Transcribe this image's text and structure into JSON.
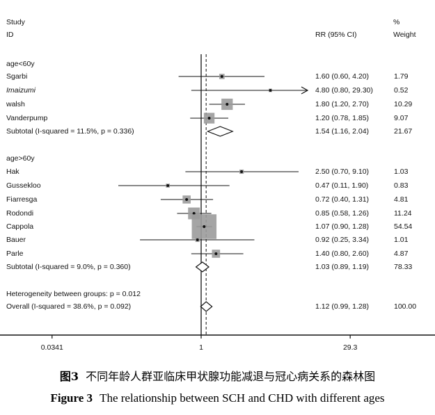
{
  "header": {
    "study_line1": "Study",
    "study_line2": "ID",
    "rr_label": "RR (95% CI)",
    "pct_label": "%",
    "weight_label": "Weight"
  },
  "chart_data": {
    "type": "forest",
    "x_scale": "log",
    "xlim": [
      0.0341,
      29.3
    ],
    "x_ticks": [
      "0.0341",
      "1",
      "29.3"
    ],
    "reference_line": 1,
    "overall_line": 1.12,
    "groups": [
      {
        "label": "age<60y",
        "studies": [
          {
            "name": "Sgarbi",
            "rr": 1.6,
            "lo": 0.6,
            "hi": 4.2,
            "ci_text": "1.60 (0.60, 4.20)",
            "weight": "1.79",
            "italic": false,
            "arrow": false
          },
          {
            "name": "Imaizumi",
            "rr": 4.8,
            "lo": 0.8,
            "hi": 29.3,
            "ci_text": "4.80 (0.80, 29.30)",
            "weight": "0.52",
            "italic": true,
            "arrow": true
          },
          {
            "name": "walsh",
            "rr": 1.8,
            "lo": 1.2,
            "hi": 2.7,
            "ci_text": "1.80 (1.20, 2.70)",
            "weight": "10.29",
            "italic": false,
            "arrow": false
          },
          {
            "name": "Vanderpump",
            "rr": 1.2,
            "lo": 0.78,
            "hi": 1.85,
            "ci_text": "1.20 (0.78, 1.85)",
            "weight": "9.07",
            "italic": false,
            "arrow": false
          }
        ],
        "subtotal": {
          "label": "Subtotal  (I-squared = 11.5%, p = 0.336)",
          "rr": 1.54,
          "lo": 1.16,
          "hi": 2.04,
          "ci_text": "1.54 (1.16, 2.04)",
          "weight": "21.67"
        }
      },
      {
        "label": "age>60y",
        "studies": [
          {
            "name": "Hak",
            "rr": 2.5,
            "lo": 0.7,
            "hi": 9.1,
            "ci_text": "2.50 (0.70, 9.10)",
            "weight": "1.03",
            "italic": false,
            "arrow": false
          },
          {
            "name": "Gussekloo",
            "rr": 0.47,
            "lo": 0.11,
            "hi": 1.9,
            "ci_text": "0.47 (0.11, 1.90)",
            "weight": "0.83",
            "italic": false,
            "arrow": false
          },
          {
            "name": "Fiarresga",
            "rr": 0.72,
            "lo": 0.4,
            "hi": 1.31,
            "ci_text": "0.72 (0.40, 1.31)",
            "weight": "4.81",
            "italic": false,
            "arrow": false
          },
          {
            "name": "Rodondi",
            "rr": 0.85,
            "lo": 0.58,
            "hi": 1.26,
            "ci_text": "0.85 (0.58, 1.26)",
            "weight": "11.24",
            "italic": false,
            "arrow": false
          },
          {
            "name": "Cappola",
            "rr": 1.07,
            "lo": 0.9,
            "hi": 1.28,
            "ci_text": "1.07 (0.90, 1.28)",
            "weight": "54.54",
            "italic": false,
            "arrow": false
          },
          {
            "name": "Bauer",
            "rr": 0.92,
            "lo": 0.25,
            "hi": 3.34,
            "ci_text": "0.92 (0.25, 3.34)",
            "weight": "1.01",
            "italic": false,
            "arrow": false
          },
          {
            "name": "Parle",
            "rr": 1.4,
            "lo": 0.8,
            "hi": 2.6,
            "ci_text": "1.40 (0.80, 2.60)",
            "weight": "4.87",
            "italic": false,
            "arrow": false
          }
        ],
        "subtotal": {
          "label": "Subtotal  (I-squared = 9.0%, p = 0.360)",
          "rr": 1.03,
          "lo": 0.89,
          "hi": 1.19,
          "ci_text": "1.03 (0.89, 1.19)",
          "weight": "78.33"
        }
      }
    ],
    "heterogeneity": "Heterogeneity between groups: p = 0.012",
    "overall": {
      "label": "Overall  (I-squared = 38.6%, p = 0.092)",
      "rr": 1.12,
      "lo": 0.99,
      "hi": 1.28,
      "ci_text": "1.12 (0.99, 1.28)",
      "weight": "100.00"
    }
  },
  "caption": {
    "cn_fig": "图3",
    "cn_text": "不同年龄人群亚临床甲状腺功能减退与冠心病关系的森林图",
    "en_fig": "Figure 3",
    "en_text": "The relationship between SCH and CHD with different ages"
  }
}
